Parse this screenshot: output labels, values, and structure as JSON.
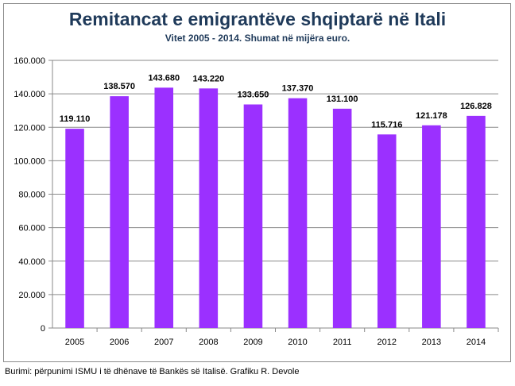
{
  "chart_data": {
    "type": "bar",
    "title": "Remitancat e emigrantëve shqiptarë në Itali",
    "subtitle": "Vitet 2005 - 2014.  Shumat në mijëra euro.",
    "categories": [
      "2005",
      "2006",
      "2007",
      "2008",
      "2009",
      "2010",
      "2011",
      "2012",
      "2013",
      "2014"
    ],
    "values": [
      119110,
      138570,
      143680,
      143220,
      133650,
      137370,
      131100,
      115716,
      121178,
      126828
    ],
    "value_labels": [
      "119.110",
      "138.570",
      "143.680",
      "143.220",
      "133.650",
      "137.370",
      "131.100",
      "115.716",
      "121.178",
      "126.828"
    ],
    "yticks": [
      0,
      20000,
      40000,
      60000,
      80000,
      100000,
      120000,
      140000,
      160000
    ],
    "ytick_labels": [
      "0",
      "20.000",
      "40.000",
      "60.000",
      "80.000",
      "100.000",
      "120.000",
      "140.000",
      "160.000"
    ],
    "ylim": [
      0,
      160000
    ],
    "grid": true,
    "legend": "none",
    "xlabel": "",
    "ylabel": "",
    "bar_color": "#9b30ff"
  },
  "source_note": "Burimi: përpunimi ISMU i të dhënave të Bankës së Italisë. Grafiku R. Devole"
}
